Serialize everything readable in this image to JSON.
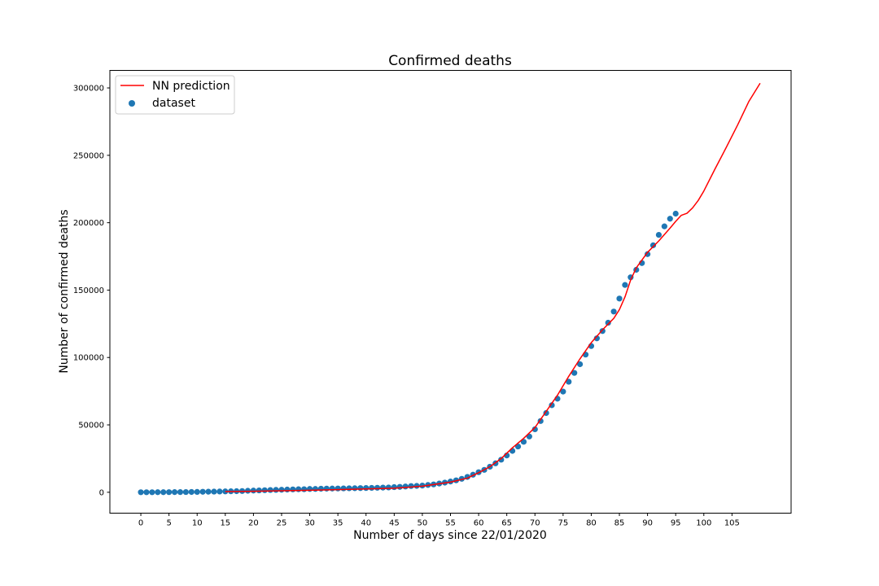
{
  "chart_data": {
    "type": "scatter",
    "title": "Confirmed deaths",
    "xlabel": "Number of days since 22/01/2020",
    "ylabel": "Number of confirmed deaths",
    "xlim": [
      -5.5,
      115.5
    ],
    "ylim": [
      -15500,
      313000
    ],
    "x_ticks": [
      0,
      5,
      10,
      15,
      20,
      25,
      30,
      35,
      40,
      45,
      50,
      55,
      60,
      65,
      70,
      75,
      80,
      85,
      90,
      95,
      100,
      105
    ],
    "y_ticks": [
      0,
      50000,
      100000,
      150000,
      200000,
      250000,
      300000
    ],
    "grid": false,
    "legend": {
      "position": "upper-left",
      "entries": [
        "NN prediction",
        "dataset"
      ]
    },
    "series": [
      {
        "name": "NN prediction",
        "kind": "line",
        "color": "#ff0000",
        "x": [
          15,
          20,
          30,
          40,
          45,
          50,
          55,
          58,
          60,
          62,
          64,
          66,
          68,
          70,
          72,
          74,
          76,
          78,
          80,
          82,
          84,
          85,
          86,
          87,
          88,
          90,
          92,
          94,
          95,
          96,
          97,
          98,
          99,
          100,
          102,
          104,
          106,
          108,
          110
        ],
        "y": [
          500,
          700,
          1500,
          2500,
          3000,
          4500,
          7500,
          10500,
          14500,
          19000,
          25000,
          33000,
          40000,
          48000,
          60000,
          72000,
          86000,
          99000,
          111000,
          120500,
          129000,
          135500,
          145000,
          157500,
          166500,
          178000,
          186500,
          196000,
          201000,
          205500,
          207000,
          211000,
          216500,
          223500,
          240000,
          256000,
          272500,
          290000,
          303500
        ]
      },
      {
        "name": "dataset",
        "kind": "scatter",
        "color": "#1f77b4",
        "x": [
          0,
          1,
          2,
          3,
          4,
          5,
          6,
          7,
          8,
          9,
          10,
          11,
          12,
          13,
          14,
          15,
          16,
          17,
          18,
          19,
          20,
          21,
          22,
          23,
          24,
          25,
          26,
          27,
          28,
          29,
          30,
          31,
          32,
          33,
          34,
          35,
          36,
          37,
          38,
          39,
          40,
          41,
          42,
          43,
          44,
          45,
          46,
          47,
          48,
          49,
          50,
          51,
          52,
          53,
          54,
          55,
          56,
          57,
          58,
          59,
          60,
          61,
          62,
          63,
          64,
          65,
          66,
          67,
          68,
          69,
          70,
          71,
          72,
          73,
          74,
          75,
          76,
          77,
          78,
          79,
          80,
          81,
          82,
          83,
          84,
          85,
          86,
          87,
          88,
          89,
          90,
          91,
          92,
          93,
          94,
          95
        ],
        "y": [
          17,
          18,
          26,
          42,
          56,
          82,
          131,
          133,
          171,
          213,
          259,
          362,
          426,
          492,
          564,
          634,
          719,
          806,
          906,
          1113,
          1259,
          1380,
          1523,
          1665,
          1770,
          1868,
          2007,
          2122,
          2247,
          2251,
          2458,
          2469,
          2629,
          2708,
          2770,
          2814,
          2872,
          2941,
          2996,
          3085,
          3160,
          3254,
          3348,
          3460,
          3558,
          3802,
          3988,
          4262,
          4615,
          4720,
          4976,
          5416,
          5832,
          6469,
          7161,
          7966,
          8840,
          9982,
          11384,
          13012,
          14887,
          16617,
          18943,
          21469,
          24161,
          27314,
          30691,
          33967,
          37448,
          41379,
          46722,
          52842,
          58787,
          64595,
          69408,
          74701,
          82006,
          88538,
          95014,
          102136,
          108497,
          114199,
          119628,
          125789,
          134076,
          143722,
          153803,
          159510,
          165063,
          170057,
          176672,
          183254,
          190969,
          197287,
          202942,
          206727
        ]
      }
    ]
  }
}
